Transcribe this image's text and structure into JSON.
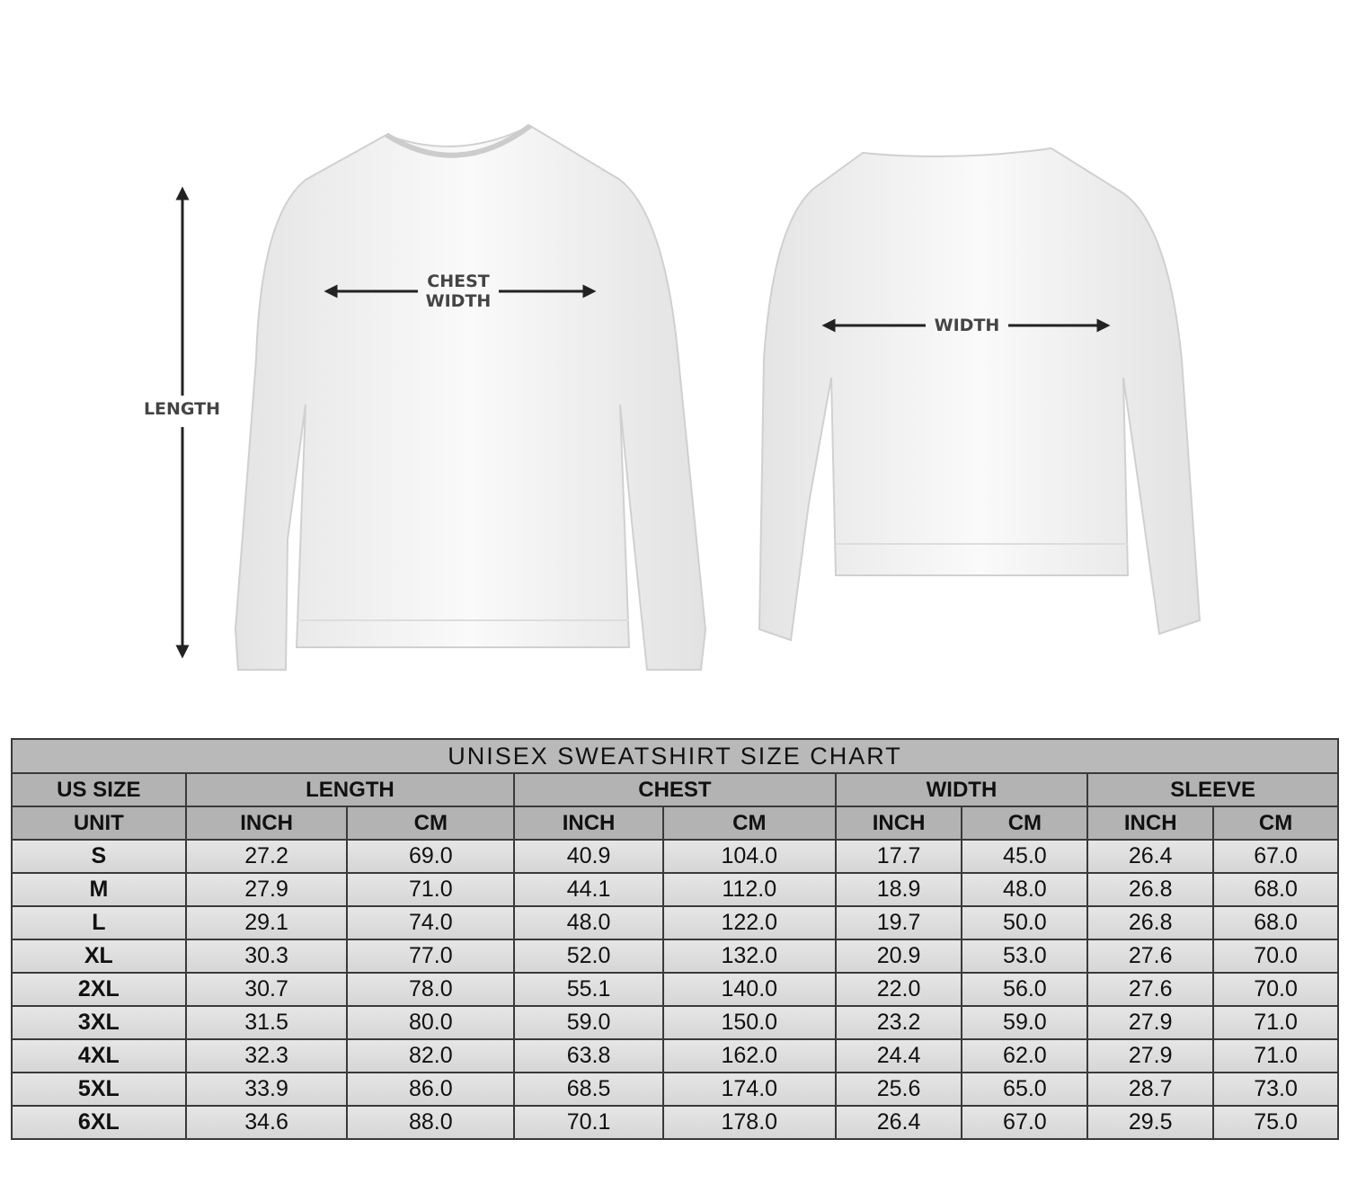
{
  "illustration": {
    "labels": {
      "length": "LENGTH",
      "chest_width_line1": "CHEST",
      "chest_width_line2": "WIDTH",
      "width": "WIDTH"
    }
  },
  "size_chart": {
    "title": "UNISEX SWEATSHIRT SIZE CHART",
    "group_headers": [
      "US SIZE",
      "LENGTH",
      "CHEST",
      "WIDTH",
      "SLEEVE"
    ],
    "unit_headers": [
      "UNIT",
      "INCH",
      "CM",
      "INCH",
      "CM",
      "INCH",
      "CM",
      "INCH",
      "CM"
    ],
    "rows": [
      [
        "S",
        "27.2",
        "69.0",
        "40.9",
        "104.0",
        "17.7",
        "45.0",
        "26.4",
        "67.0"
      ],
      [
        "M",
        "27.9",
        "71.0",
        "44.1",
        "112.0",
        "18.9",
        "48.0",
        "26.8",
        "68.0"
      ],
      [
        "L",
        "29.1",
        "74.0",
        "48.0",
        "122.0",
        "19.7",
        "50.0",
        "26.8",
        "68.0"
      ],
      [
        "XL",
        "30.3",
        "77.0",
        "52.0",
        "132.0",
        "20.9",
        "53.0",
        "27.6",
        "70.0"
      ],
      [
        "2XL",
        "30.7",
        "78.0",
        "55.1",
        "140.0",
        "22.0",
        "56.0",
        "27.6",
        "70.0"
      ],
      [
        "3XL",
        "31.5",
        "80.0",
        "59.0",
        "150.0",
        "23.2",
        "59.0",
        "27.9",
        "71.0"
      ],
      [
        "4XL",
        "32.3",
        "82.0",
        "63.8",
        "162.0",
        "24.4",
        "62.0",
        "27.9",
        "71.0"
      ],
      [
        "5XL",
        "33.9",
        "86.0",
        "68.5",
        "174.0",
        "25.6",
        "65.0",
        "28.7",
        "73.0"
      ],
      [
        "6XL",
        "34.6",
        "88.0",
        "70.1",
        "178.0",
        "26.4",
        "67.0",
        "29.5",
        "75.0"
      ]
    ]
  }
}
